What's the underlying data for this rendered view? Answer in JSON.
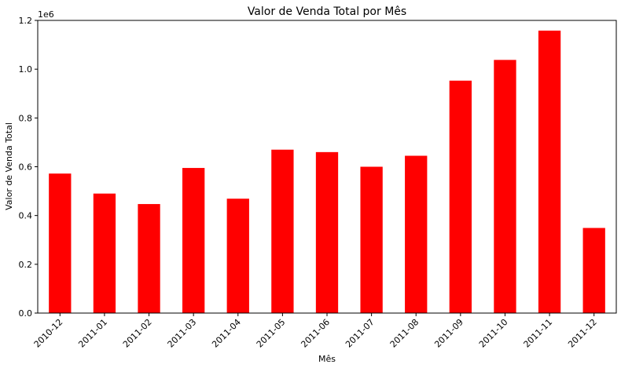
{
  "chart_data": {
    "type": "bar",
    "title": "Valor de Venda Total por Mês",
    "xlabel": "Mês",
    "ylabel": "Valor de Venda Total",
    "y_scale_label": "1e6",
    "categories": [
      "2010-12",
      "2011-01",
      "2011-02",
      "2011-03",
      "2011-04",
      "2011-05",
      "2011-06",
      "2011-07",
      "2011-08",
      "2011-09",
      "2011-10",
      "2011-11",
      "2011-12"
    ],
    "series": [
      {
        "values": [
          572000,
          490000,
          447000,
          595000,
          469000,
          670000,
          660000,
          600000,
          645000,
          953000,
          1038000,
          1158000,
          349000
        ],
        "color": "#ff0000"
      }
    ],
    "ylim": [
      0,
      1200000
    ],
    "y_ticks": [
      0,
      200000,
      400000,
      600000,
      800000,
      1000000,
      1200000
    ],
    "y_tick_labels": [
      "0.0",
      "0.2",
      "0.4",
      "0.6",
      "0.8",
      "1.0",
      "1.2"
    ],
    "grid": false,
    "legend": "none"
  }
}
